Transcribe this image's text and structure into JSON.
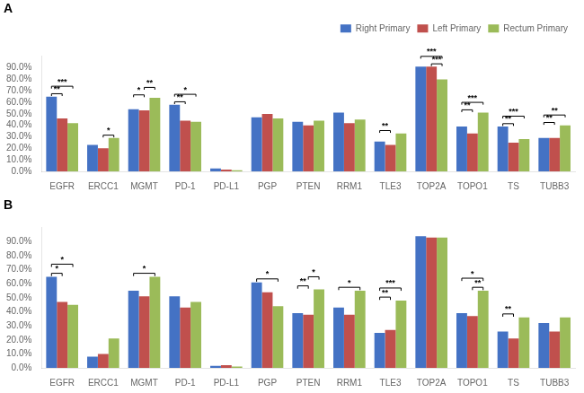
{
  "chart_data": [
    {
      "type": "bar",
      "title": "A",
      "categories": [
        "EGFR",
        "ERCC1",
        "MGMT",
        "PD-1",
        "PD-L1",
        "PGP",
        "PTEN",
        "RRM1",
        "TLE3",
        "TOP2A",
        "TOPO1",
        "TS",
        "TUBB3"
      ],
      "series": [
        {
          "name": "Right Primary",
          "color": "#4472C4",
          "values": [
            65,
            23,
            54,
            58,
            2.5,
            47,
            43,
            51,
            26,
            91,
            39,
            39,
            29
          ]
        },
        {
          "name": "Left Primary",
          "color": "#C0504D",
          "values": [
            46,
            20,
            53,
            44,
            1.5,
            50,
            40,
            42,
            23,
            91,
            33,
            25,
            29
          ]
        },
        {
          "name": "Rectum Primary",
          "color": "#9BBB59",
          "values": [
            42,
            29,
            64,
            43,
            1,
            46,
            44,
            45,
            33,
            80,
            51,
            28,
            40
          ]
        }
      ],
      "ylim": [
        0,
        100
      ],
      "yticks": [
        {
          "value": 0,
          "label": "0.0%"
        },
        {
          "value": 10,
          "label": "10.0%"
        },
        {
          "value": 20,
          "label": "20.0%"
        },
        {
          "value": 30,
          "label": "30.0%"
        },
        {
          "value": 40,
          "label": "40.0%"
        },
        {
          "value": 50,
          "label": "50.0%"
        },
        {
          "value": 60,
          "label": "60.0%"
        },
        {
          "value": 70,
          "label": "70.0%"
        },
        {
          "value": 80,
          "label": "80.0%"
        },
        {
          "value": 90,
          "label": "90.0%"
        }
      ],
      "grid": false,
      "legend": "upper right",
      "annotations": [
        {
          "group": "EGFR",
          "pairs": [
            [
              "Right Primary",
              "Left Primary",
              "**"
            ],
            [
              "Right Primary",
              "Rectum Primary",
              "***"
            ]
          ]
        },
        {
          "group": "ERCC1",
          "pairs": [
            [
              "Left Primary",
              "Rectum Primary",
              "*"
            ]
          ]
        },
        {
          "group": "MGMT",
          "pairs": [
            [
              "Right Primary",
              "Left Primary",
              "*"
            ],
            [
              "Left Primary",
              "Rectum Primary",
              "**"
            ]
          ]
        },
        {
          "group": "PD-1",
          "pairs": [
            [
              "Right Primary",
              "Left Primary",
              "**"
            ],
            [
              "Right Primary",
              "Rectum Primary",
              "*"
            ]
          ]
        },
        {
          "group": "TLE3",
          "pairs": [
            [
              "Right Primary",
              "Left Primary",
              "**"
            ]
          ]
        },
        {
          "group": "TOP2A",
          "pairs": [
            [
              "Right Primary",
              "Rectum Primary",
              "***"
            ],
            [
              "Left Primary",
              "Rectum Primary",
              "***"
            ]
          ]
        },
        {
          "group": "TOPO1",
          "pairs": [
            [
              "Right Primary",
              "Left Primary",
              "**"
            ],
            [
              "Right Primary",
              "Rectum Primary",
              "***"
            ]
          ]
        },
        {
          "group": "TS",
          "pairs": [
            [
              "Right Primary",
              "Left Primary",
              "**"
            ],
            [
              "Right Primary",
              "Rectum Primary",
              "***"
            ]
          ]
        },
        {
          "group": "TUBB3",
          "pairs": [
            [
              "Right Primary",
              "Left Primary",
              "**"
            ],
            [
              "Right Primary",
              "Rectum Primary",
              "**"
            ]
          ]
        }
      ]
    },
    {
      "type": "bar",
      "title": "B",
      "categories": [
        "EGFR",
        "ERCC1",
        "MGMT",
        "PD-1",
        "PD-L1",
        "PGP",
        "PTEN",
        "RRM1",
        "TLE3",
        "TOP2A",
        "TOPO1",
        "TS",
        "TUBB3"
      ],
      "series": [
        {
          "name": "Right Primary",
          "color": "#4472C4",
          "values": [
            65,
            8,
            55,
            51,
            1.5,
            61,
            39,
            43,
            25,
            94,
            39,
            26,
            32
          ]
        },
        {
          "name": "Left Primary",
          "color": "#C0504D",
          "values": [
            47,
            10,
            51,
            43,
            2,
            54,
            38,
            38,
            27,
            93,
            37,
            21,
            26
          ]
        },
        {
          "name": "Rectum Primary",
          "color": "#9BBB59",
          "values": [
            45,
            21,
            65,
            47,
            1,
            44,
            56,
            55,
            48,
            93,
            55,
            36,
            36
          ]
        }
      ],
      "ylim": [
        0,
        100
      ],
      "yticks": [
        {
          "value": 0,
          "label": "0.0%"
        },
        {
          "value": 10,
          "label": "10.0%"
        },
        {
          "value": 20,
          "label": "20.0%"
        },
        {
          "value": 30,
          "label": "30.0%"
        },
        {
          "value": 40,
          "label": "40.0%"
        },
        {
          "value": 50,
          "label": "50.0%"
        },
        {
          "value": 60,
          "label": "60.0%"
        },
        {
          "value": 70,
          "label": "70.0%"
        },
        {
          "value": 80,
          "label": "80.0%"
        },
        {
          "value": 90,
          "label": "90.0%"
        }
      ],
      "grid": false,
      "annotations": [
        {
          "group": "EGFR",
          "pairs": [
            [
              "Right Primary",
              "Left Primary",
              "*"
            ],
            [
              "Right Primary",
              "Rectum Primary",
              "*"
            ]
          ]
        },
        {
          "group": "MGMT",
          "pairs": [
            [
              "Right Primary",
              "Rectum Primary",
              "*"
            ]
          ]
        },
        {
          "group": "PGP",
          "pairs": [
            [
              "Right Primary",
              "Rectum Primary",
              "*"
            ]
          ]
        },
        {
          "group": "PTEN",
          "pairs": [
            [
              "Right Primary",
              "Left Primary",
              "**"
            ],
            [
              "Left Primary",
              "Rectum Primary",
              "*"
            ]
          ]
        },
        {
          "group": "RRM1",
          "pairs": [
            [
              "Right Primary",
              "Rectum Primary",
              "*"
            ]
          ]
        },
        {
          "group": "TLE3",
          "pairs": [
            [
              "Right Primary",
              "Left Primary",
              "**"
            ],
            [
              "Right Primary",
              "Rectum Primary",
              "***"
            ]
          ]
        },
        {
          "group": "TOPO1",
          "pairs": [
            [
              "Right Primary",
              "Rectum Primary",
              "*"
            ],
            [
              "Left Primary",
              "Rectum Primary",
              "**"
            ]
          ]
        },
        {
          "group": "TS",
          "pairs": [
            [
              "Right Primary",
              "Left Primary",
              "**"
            ]
          ]
        }
      ]
    }
  ]
}
